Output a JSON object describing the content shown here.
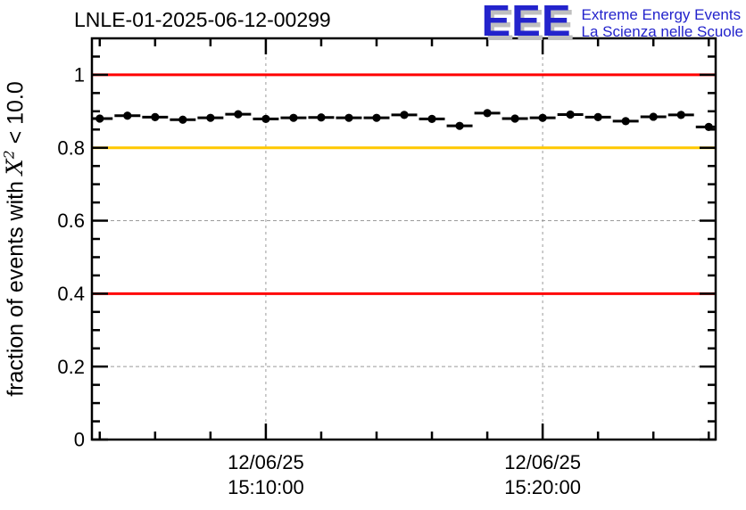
{
  "header": {
    "title": "LNLE-01-2025-06-12-00299",
    "logo": {
      "acronym": "EEE",
      "line1": "Extreme Energy Events",
      "line2": "La Scienza nelle Scuole",
      "color": "#2323cc",
      "shadow_color": "#bfbfbf"
    }
  },
  "y_axis_label": {
    "prefix": "fraction of events with ",
    "symbol": "X",
    "exponent": "2",
    "suffix": " < 10.0"
  },
  "chart_data": {
    "type": "scatter",
    "title": "LNLE-01-2025-06-12-00299",
    "xlabel": "",
    "ylabel": "fraction of events with X^2 < 10.0",
    "date_label": "12/06/25",
    "grid": {
      "show": true,
      "style": "dashed",
      "color": "#9b9b9b"
    },
    "x_axis": {
      "kind": "time",
      "start": "15:03:43",
      "end": "15:26:15",
      "minor_tick_step_seconds": 120,
      "major_ticks": [
        {
          "time": "15:10:00",
          "label_line1": "12/06/25",
          "label_line2": "15:10:00"
        },
        {
          "time": "15:20:00",
          "label_line1": "12/06/25",
          "label_line2": "15:20:00"
        }
      ]
    },
    "y_axis": {
      "min": 0,
      "max": 1.1,
      "minor_tick_step": 0.05,
      "major_ticks": [
        {
          "value": 0,
          "label": "0"
        },
        {
          "value": 0.2,
          "label": "0.2"
        },
        {
          "value": 0.4,
          "label": "0.4"
        },
        {
          "value": 0.6,
          "label": "0.6"
        },
        {
          "value": 0.8,
          "label": "0.8"
        },
        {
          "value": 1,
          "label": "1"
        }
      ]
    },
    "reference_lines": [
      {
        "y": 1.0,
        "color": "#ff0000"
      },
      {
        "y": 0.8,
        "color": "#ffc800"
      },
      {
        "y": 0.4,
        "color": "#ff0000"
      }
    ],
    "series": [
      {
        "name": "fraction of events with chi2 < 10.0 per minute",
        "marker": "filled-circle",
        "color": "#000000",
        "x_error_halfwidth_seconds": 28,
        "points": [
          {
            "time": "15:04:00",
            "value": 0.88
          },
          {
            "time": "15:05:00",
            "value": 0.888
          },
          {
            "time": "15:06:00",
            "value": 0.884
          },
          {
            "time": "15:07:00",
            "value": 0.877
          },
          {
            "time": "15:08:00",
            "value": 0.882
          },
          {
            "time": "15:09:00",
            "value": 0.892
          },
          {
            "time": "15:10:00",
            "value": 0.879
          },
          {
            "time": "15:11:00",
            "value": 0.882
          },
          {
            "time": "15:12:00",
            "value": 0.883
          },
          {
            "time": "15:13:00",
            "value": 0.882
          },
          {
            "time": "15:14:00",
            "value": 0.882
          },
          {
            "time": "15:15:00",
            "value": 0.89
          },
          {
            "time": "15:16:00",
            "value": 0.879
          },
          {
            "time": "15:17:00",
            "value": 0.86
          },
          {
            "time": "15:18:00",
            "value": 0.895
          },
          {
            "time": "15:19:00",
            "value": 0.88
          },
          {
            "time": "15:20:00",
            "value": 0.882
          },
          {
            "time": "15:21:00",
            "value": 0.891
          },
          {
            "time": "15:22:00",
            "value": 0.884
          },
          {
            "time": "15:23:00",
            "value": 0.873
          },
          {
            "time": "15:24:00",
            "value": 0.885
          },
          {
            "time": "15:25:00",
            "value": 0.89
          },
          {
            "time": "15:26:00",
            "value": 0.857
          }
        ]
      }
    ]
  }
}
